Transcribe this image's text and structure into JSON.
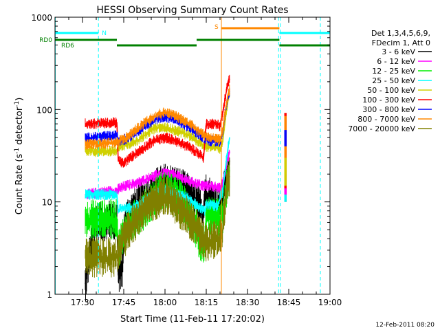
{
  "chart_data": {
    "type": "line",
    "title": "HESSI Observing Summary Count Rates",
    "xlabel": "Start Time (11-Feb-11 17:20:02)",
    "ylabel_main": "Count Rate (s",
    "ylabel_sup1": "-1",
    "ylabel_mid": " detector",
    "ylabel_sup2": "-1",
    "ylabel_end": ")",
    "yscale": "log",
    "xlim_minutes": [
      0,
      100
    ],
    "ylim": [
      1,
      1000
    ],
    "x_ticks": [
      {
        "minute": 10,
        "label": "17:30"
      },
      {
        "minute": 25,
        "label": "17:45"
      },
      {
        "minute": 40,
        "label": "18:00"
      },
      {
        "minute": 55,
        "label": "18:15"
      },
      {
        "minute": 70,
        "label": "18:30"
      },
      {
        "minute": 85,
        "label": "18:45"
      },
      {
        "minute": 100,
        "label": "19:00"
      }
    ],
    "y_ticks": [
      {
        "value": 1,
        "label": "1"
      },
      {
        "value": 10,
        "label": "10"
      },
      {
        "value": 100,
        "label": "100"
      },
      {
        "value": 1000,
        "label": "1000"
      }
    ],
    "legend_header": [
      "Det 1,3,4,5,6,9,",
      "FDecim 1, Att 0"
    ],
    "series": [
      {
        "name": "3 - 6 keV",
        "color": "#000000",
        "points": [
          [
            11,
            1.3
          ],
          [
            12,
            2.0
          ],
          [
            13,
            3.0
          ],
          [
            14,
            5.0
          ],
          [
            15,
            6.0
          ],
          [
            22.5,
            6.5
          ],
          [
            23,
            1.6
          ],
          [
            24.5,
            2.0
          ],
          [
            25.5,
            6.0
          ],
          [
            27,
            7.5
          ],
          [
            29,
            8.5
          ],
          [
            32,
            10.5
          ],
          [
            35,
            13
          ],
          [
            38,
            15
          ],
          [
            40,
            16
          ],
          [
            43,
            15.5
          ],
          [
            46,
            14
          ],
          [
            49,
            12
          ],
          [
            51,
            10
          ],
          [
            53,
            8.5
          ],
          [
            54,
            7.2
          ],
          [
            54.5,
            13
          ],
          [
            57,
            11
          ],
          [
            58,
            10.5
          ],
          [
            59,
            9.5
          ],
          [
            60,
            9.0
          ],
          [
            61,
            11
          ],
          [
            62,
            16
          ],
          [
            63,
            24
          ],
          [
            63.5,
            28
          ]
        ]
      },
      {
        "name": "6 - 12 keV",
        "color": "#ff00ff",
        "points": [
          [
            11,
            12
          ],
          [
            15,
            12.5
          ],
          [
            19,
            13
          ],
          [
            22.5,
            13
          ],
          [
            23.2,
            14
          ],
          [
            26,
            15
          ],
          [
            30,
            16
          ],
          [
            34,
            18
          ],
          [
            38,
            20
          ],
          [
            40,
            20.5
          ],
          [
            44,
            19.5
          ],
          [
            48,
            17
          ],
          [
            52,
            15.5
          ],
          [
            54.5,
            15
          ],
          [
            56,
            15
          ],
          [
            59,
            14.5
          ],
          [
            60,
            14
          ],
          [
            61,
            16
          ],
          [
            62,
            22
          ],
          [
            63,
            30
          ],
          [
            63.5,
            35
          ]
        ]
      },
      {
        "name": "12 - 25 keV",
        "color": "#00ee00",
        "points": [
          [
            11,
            6.5
          ],
          [
            22.5,
            6.5
          ],
          [
            23,
            3.0
          ],
          [
            25,
            4.5
          ],
          [
            28,
            6
          ],
          [
            32,
            8
          ],
          [
            36,
            11
          ],
          [
            39,
            13.5
          ],
          [
            41,
            13
          ],
          [
            45,
            11
          ],
          [
            48,
            8.5
          ],
          [
            50,
            6.5
          ],
          [
            51,
            5.5
          ],
          [
            52,
            4.0
          ],
          [
            54.5,
            3.0
          ],
          [
            55,
            7.0
          ],
          [
            59,
            7.0
          ],
          [
            60,
            5.8
          ],
          [
            61,
            7.0
          ],
          [
            62,
            12
          ],
          [
            63,
            18
          ],
          [
            63.5,
            22
          ]
        ]
      },
      {
        "name": "25 - 50 keV",
        "color": "#00ffff",
        "points": [
          [
            11,
            12
          ],
          [
            22.5,
            12
          ],
          [
            23,
            8
          ],
          [
            25,
            8.8
          ],
          [
            28,
            8.5
          ],
          [
            32,
            10
          ],
          [
            36,
            12
          ],
          [
            39,
            13.5
          ],
          [
            42,
            13
          ],
          [
            46,
            12
          ],
          [
            50,
            10
          ],
          [
            53,
            8.5
          ],
          [
            54.5,
            8.0
          ],
          [
            55,
            9.5
          ],
          [
            59,
            9.0
          ],
          [
            61,
            13
          ],
          [
            62,
            24
          ],
          [
            63,
            40
          ],
          [
            63.5,
            50
          ]
        ]
      },
      {
        "name": "50 - 100 keV",
        "color": "#d0d000",
        "points": [
          [
            11,
            36
          ],
          [
            16,
            35
          ],
          [
            22.5,
            36
          ],
          [
            23,
            40
          ],
          [
            27,
            42
          ],
          [
            31,
            48
          ],
          [
            35,
            60
          ],
          [
            38,
            64
          ],
          [
            41,
            63
          ],
          [
            45,
            58
          ],
          [
            49,
            52
          ],
          [
            52,
            45
          ],
          [
            54,
            40
          ],
          [
            55,
            40
          ],
          [
            59,
            39
          ],
          [
            60,
            37
          ],
          [
            61,
            45
          ],
          [
            62,
            80
          ],
          [
            63,
            130
          ],
          [
            63.5,
            150
          ]
        ]
      },
      {
        "name": "100 - 300 keV",
        "color": "#ff0000",
        "points": [
          [
            11,
            70
          ],
          [
            22.5,
            72
          ],
          [
            23,
            28
          ],
          [
            25,
            26
          ],
          [
            28,
            31
          ],
          [
            32,
            38
          ],
          [
            36,
            46
          ],
          [
            39,
            49
          ],
          [
            41,
            49
          ],
          [
            45,
            44
          ],
          [
            49,
            39
          ],
          [
            53,
            32
          ],
          [
            54,
            29
          ],
          [
            55,
            70
          ],
          [
            59,
            70
          ],
          [
            60,
            66
          ],
          [
            61,
            90
          ],
          [
            62,
            140
          ],
          [
            63,
            200
          ],
          [
            63.5,
            215
          ]
        ]
      },
      {
        "name": "300 - 800 keV",
        "color": "#0000ff",
        "points": [
          [
            11,
            49
          ],
          [
            22.5,
            52
          ],
          [
            23,
            46
          ],
          [
            26,
            48
          ],
          [
            30,
            58
          ],
          [
            34,
            70
          ],
          [
            38,
            82
          ],
          [
            40,
            84
          ],
          [
            43,
            80
          ],
          [
            47,
            69
          ],
          [
            51,
            57
          ],
          [
            54,
            50
          ],
          [
            56,
            46
          ],
          [
            59,
            45
          ],
          [
            60,
            44
          ],
          [
            61,
            55
          ],
          [
            62,
            100
          ],
          [
            63,
            145
          ],
          [
            63.5,
            160
          ]
        ]
      },
      {
        "name": "800 - 7000 keV",
        "color": "#ff8800",
        "points": [
          [
            11,
            42
          ],
          [
            22.5,
            44
          ],
          [
            23,
            45
          ],
          [
            26,
            50
          ],
          [
            30,
            62
          ],
          [
            34,
            77
          ],
          [
            38,
            90
          ],
          [
            40,
            93
          ],
          [
            43,
            87
          ],
          [
            47,
            76
          ],
          [
            51,
            63
          ],
          [
            54,
            53
          ],
          [
            56,
            50
          ],
          [
            59,
            48
          ],
          [
            60,
            47
          ],
          [
            61,
            58
          ],
          [
            62,
            100
          ],
          [
            63,
            150
          ],
          [
            63.5,
            165
          ]
        ]
      },
      {
        "name": "7000 - 20000 keV",
        "color": "#808000",
        "points": [
          [
            11,
            2.5
          ],
          [
            22.5,
            2.5
          ],
          [
            23,
            3.0
          ],
          [
            26,
            4.5
          ],
          [
            30,
            6.5
          ],
          [
            34,
            9.5
          ],
          [
            38,
            11
          ],
          [
            40,
            11.5
          ],
          [
            43,
            10
          ],
          [
            47,
            7.5
          ],
          [
            51,
            5.5
          ],
          [
            54,
            3.7
          ],
          [
            55,
            3.5
          ],
          [
            58,
            4.0
          ],
          [
            60,
            3.8
          ],
          [
            61,
            5
          ],
          [
            62,
            11
          ],
          [
            63,
            17
          ],
          [
            63.5,
            19
          ]
        ]
      }
    ],
    "late_segment": {
      "x_range": [
        83.5,
        84.3
      ],
      "values": [
        {
          "color": "#ff0000",
          "top": 92,
          "bottom": 10
        },
        {
          "color": "#ff8800",
          "top": 85,
          "bottom": 20
        },
        {
          "color": "#0000ff",
          "top": 60,
          "bottom": 40
        },
        {
          "color": "#d0d000",
          "top": 30,
          "bottom": 15
        },
        {
          "color": "#ff00ff",
          "top": 14,
          "bottom": 12
        },
        {
          "color": "#00ffff",
          "top": 12,
          "bottom": 10
        }
      ]
    },
    "state_bars": [
      {
        "label": "N",
        "color": "#00ffff",
        "level": 0,
        "segments": [
          [
            0,
            15.8
          ],
          [
            81.6,
            100
          ]
        ]
      },
      {
        "label": "S",
        "color": "#ff8800",
        "level": -1,
        "segments": [
          [
            60.5,
            81.6
          ]
        ]
      },
      {
        "label": "RD0",
        "color": "#008000",
        "level": 1,
        "segments": [
          [
            0,
            22.5
          ],
          [
            51.5,
            81.6
          ]
        ]
      },
      {
        "label": "RD6",
        "color": "#008000",
        "level": 2,
        "segments": [
          [
            22.5,
            51.5
          ],
          [
            81.6,
            100
          ]
        ]
      }
    ],
    "vertical_markers": [
      {
        "minute": 15.8,
        "color": "#00ffff",
        "dashed": true
      },
      {
        "minute": 0.1,
        "color": "#00ffff",
        "dashed": false
      },
      {
        "minute": 60.5,
        "color": "#ff8800",
        "dashed": false
      },
      {
        "minute": 81.3,
        "color": "#00ffff",
        "dashed": true
      },
      {
        "minute": 81.9,
        "color": "#00ffff",
        "dashed": true
      },
      {
        "minute": 96.5,
        "color": "#00ffff",
        "dashed": true
      }
    ],
    "footer_date": "12-Feb-2011 08:20"
  }
}
